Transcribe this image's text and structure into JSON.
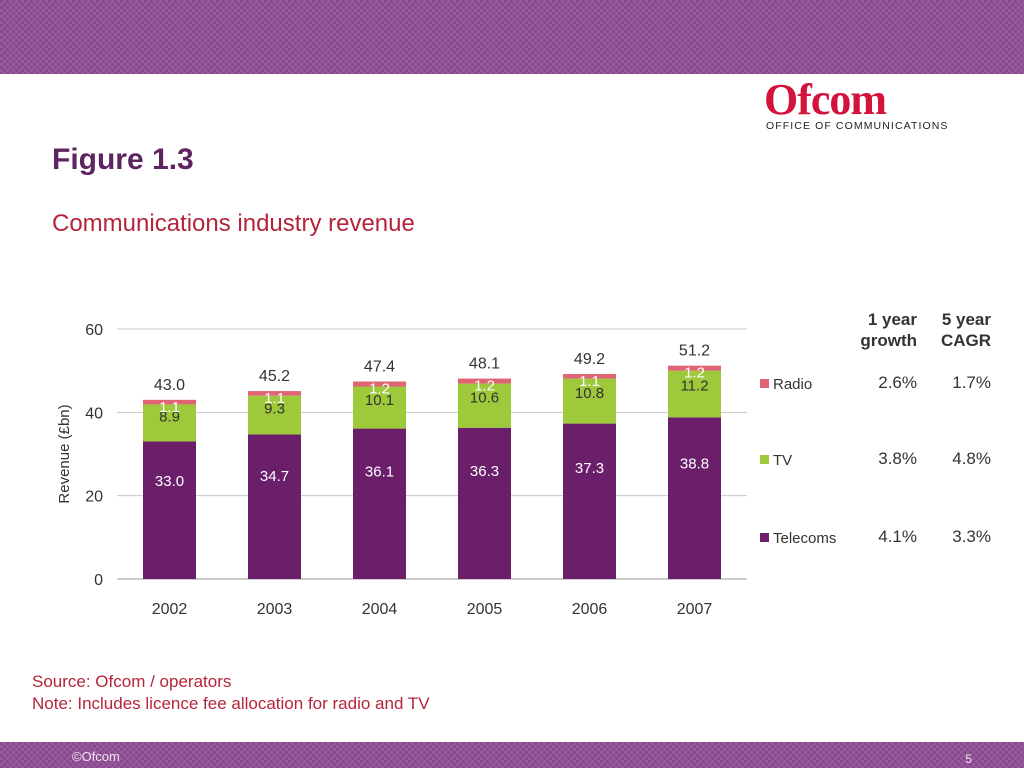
{
  "header": {
    "logo_word": "Ofcom",
    "logo_tagline": "OFFICE OF COMMUNICATIONS",
    "figure_title": "Figure 1.3",
    "subtitle": "Communications industry revenue"
  },
  "footer": {
    "source": "Source: Ofcom / operators",
    "note": "Note: Includes licence fee allocation for radio and TV",
    "copyright": "©Ofcom",
    "page_number": "5"
  },
  "colors": {
    "band": "#8b4a8f",
    "title": "#5d2462",
    "accent_red": "#b5243b",
    "telecoms": "#6b1f6b",
    "tv": "#9dc93a",
    "radio": "#e06474"
  },
  "chart_data": {
    "type": "bar",
    "stacked": true,
    "categories": [
      "2002",
      "2003",
      "2004",
      "2005",
      "2006",
      "2007"
    ],
    "series": [
      {
        "name": "Telecoms",
        "values": [
          33.0,
          34.7,
          36.1,
          36.3,
          37.3,
          38.8
        ],
        "labels": [
          "33.0",
          "34.7",
          "36.1",
          "36.3",
          "37.3",
          "38.8"
        ],
        "color": "#6b1f6b"
      },
      {
        "name": "TV",
        "values": [
          8.9,
          9.3,
          10.1,
          10.6,
          10.8,
          11.2
        ],
        "labels": [
          "8.9",
          "9.3",
          "10.1",
          "10.6",
          "10.8",
          "11.2"
        ],
        "color": "#9dc93a"
      },
      {
        "name": "Radio",
        "values": [
          1.1,
          1.1,
          1.2,
          1.2,
          1.1,
          1.2
        ],
        "labels": [
          "1.1",
          "1.1",
          "1.2",
          "1.2",
          "1.1",
          "1.2"
        ],
        "color": "#e06474"
      }
    ],
    "totals": [
      "43.0",
      "45.2",
      "47.4",
      "48.1",
      "49.2",
      "51.2"
    ],
    "title": "",
    "xlabel": "",
    "ylabel": "Revenue (£bn)",
    "ylim": [
      0,
      60
    ],
    "yticks": [
      "0",
      "20",
      "40",
      "60"
    ],
    "grid": true,
    "legend": "right",
    "stats_table": {
      "headers": [
        [
          "1 year",
          "growth"
        ],
        [
          "5 year",
          "CAGR"
        ]
      ],
      "rows": [
        {
          "series": "Radio",
          "one_year": "2.6%",
          "five_year": "1.7%"
        },
        {
          "series": "TV",
          "one_year": "3.8%",
          "five_year": "4.8%"
        },
        {
          "series": "Telecoms",
          "one_year": "4.1%",
          "five_year": "3.3%"
        }
      ]
    }
  }
}
